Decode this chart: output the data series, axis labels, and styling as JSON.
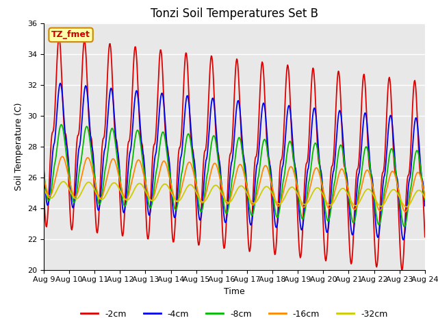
{
  "title": "Tonzi Soil Temperatures Set B",
  "xlabel": "Time",
  "ylabel": "Soil Temperature (C)",
  "ylim": [
    20,
    36
  ],
  "xlim_start": 0,
  "xlim_end": 15,
  "xtick_labels": [
    "Aug 9",
    "Aug 10",
    "Aug 11",
    "Aug 12",
    "Aug 13",
    "Aug 14",
    "Aug 15",
    "Aug 16",
    "Aug 17",
    "Aug 18",
    "Aug 19",
    "Aug 20",
    "Aug 21",
    "Aug 22",
    "Aug 23",
    "Aug 24"
  ],
  "lines": {
    "-2cm": {
      "color": "#dd0000",
      "lw": 1.3
    },
    "-4cm": {
      "color": "#0000ee",
      "lw": 1.3
    },
    "-8cm": {
      "color": "#00bb00",
      "lw": 1.3
    },
    "-16cm": {
      "color": "#ff8800",
      "lw": 1.3
    },
    "-32cm": {
      "color": "#cccc00",
      "lw": 1.3
    }
  },
  "annotation_text": "TZ_fmet",
  "annotation_bg": "#ffffaa",
  "annotation_border": "#cc8800",
  "bg_color": "#e8e8e8",
  "title_fontsize": 12,
  "axis_fontsize": 9,
  "legend_fontsize": 9
}
